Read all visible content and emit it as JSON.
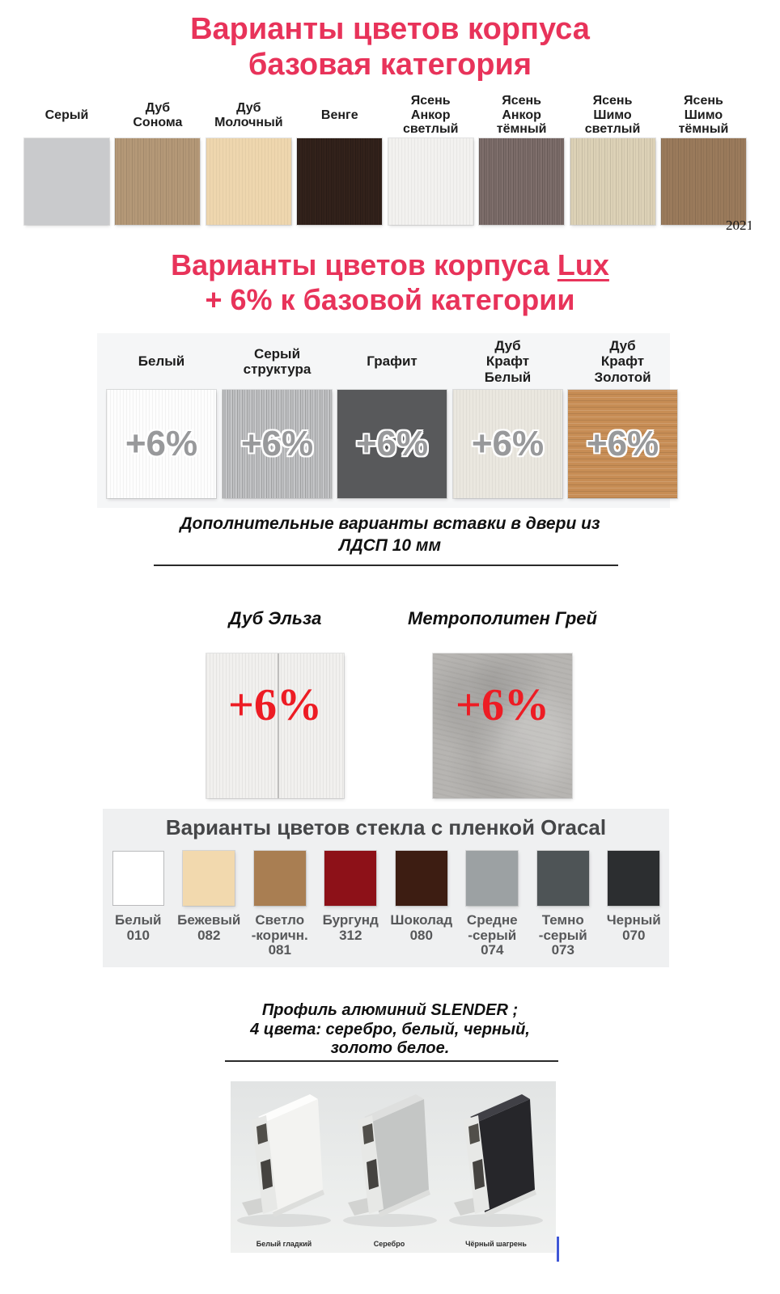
{
  "colors": {
    "accent": "#e8335a",
    "badge_gray": "#98999b",
    "badge_red": "#ed1c24",
    "lux_box_bg": "#f5f6f7",
    "oracal_box_bg": "#eff0f1"
  },
  "base": {
    "title": "Варианты цветов корпуса\nбазовая категория",
    "watermark": "2021",
    "swatches": [
      {
        "label": "Серый",
        "color": "#c9cacc",
        "grain": null
      },
      {
        "label": "Дуб\nСонома",
        "color": "#b49877",
        "grain": "v"
      },
      {
        "label": "Дуб\nМолочный",
        "color": "#eed6ae",
        "grain": "vf"
      },
      {
        "label": "Венге",
        "color": "#33221b",
        "grain": "vd"
      },
      {
        "label": "Ясень\nАнкор\nсветлый",
        "color": "#f2f1ef",
        "grain": "vf"
      },
      {
        "label": "Ясень\nАнкор\nтёмный",
        "color": "#7f6f6c",
        "grain": "vd"
      },
      {
        "label": "Ясень\nШимо\nсветлый",
        "color": "#dcd1b6",
        "grain": "v"
      },
      {
        "label": "Ясень\nШимо\nтёмный",
        "color": "#9a7a5b",
        "grain": "v"
      }
    ]
  },
  "lux": {
    "title_prefix": "Варианты цветов корпуса ",
    "title_lux": "Lux",
    "title_line2": "+ 6% к базовой категории",
    "badge": "+6%",
    "swatches": [
      {
        "label": "Белый",
        "color": "#fdfdfd",
        "grain": "vf"
      },
      {
        "label": "Серый\nструктура",
        "color": "#c4c5c7",
        "grain": "vd"
      },
      {
        "label": "Графит",
        "color": "#58595b",
        "grain": null
      },
      {
        "label": "Дуб\nКрафт\nБелый",
        "color": "#eae7df",
        "grain": "vf"
      },
      {
        "label": "Дуб\nКрафт\nЗолотой",
        "color": "#c78d55",
        "grain": "h"
      }
    ]
  },
  "ldsp": {
    "title": "Дополнительные варианты вставки в двери из\nЛДСП 10 мм",
    "badge": "+6%",
    "swatches": [
      {
        "label": "Дуб Эльза",
        "color": "#f1f0ee",
        "grain": "crack"
      },
      {
        "label": "Метрополитен Грей",
        "color": "#b7b5b2",
        "grain": "concrete"
      }
    ]
  },
  "oracal": {
    "title": "Варианты цветов стекла с пленкой Oracal",
    "swatches": [
      {
        "label": "Белый\n010",
        "color": "#ffffff",
        "border": true
      },
      {
        "label": "Бежевый\n082",
        "color": "#f2d9ae"
      },
      {
        "label": "Светло\n-коричн.\n081",
        "color": "#a97e52"
      },
      {
        "label": "Бургунд\n312",
        "color": "#8d1118"
      },
      {
        "label": "Шоколад\n080",
        "color": "#3d1d12"
      },
      {
        "label": "Средне\n-серый\n074",
        "color": "#9ca1a3"
      },
      {
        "label": "Темно\n-серый\n073",
        "color": "#4e5456"
      },
      {
        "label": "Черный\n070",
        "color": "#2c2e30"
      }
    ]
  },
  "profile": {
    "title": "Профиль алюминий SLENDER ;\n4 цвета: серебро, белый, черный,\nзолото белое.",
    "items": [
      {
        "label": "Белый гладкий",
        "body": "#f3f3f1",
        "top": "#fdfdfc"
      },
      {
        "label": "Серебро",
        "body": "#c4c6c5",
        "top": "#dedfde"
      },
      {
        "label": "Чёрный шагрень",
        "body": "#26262a",
        "top": "#404046"
      }
    ]
  }
}
